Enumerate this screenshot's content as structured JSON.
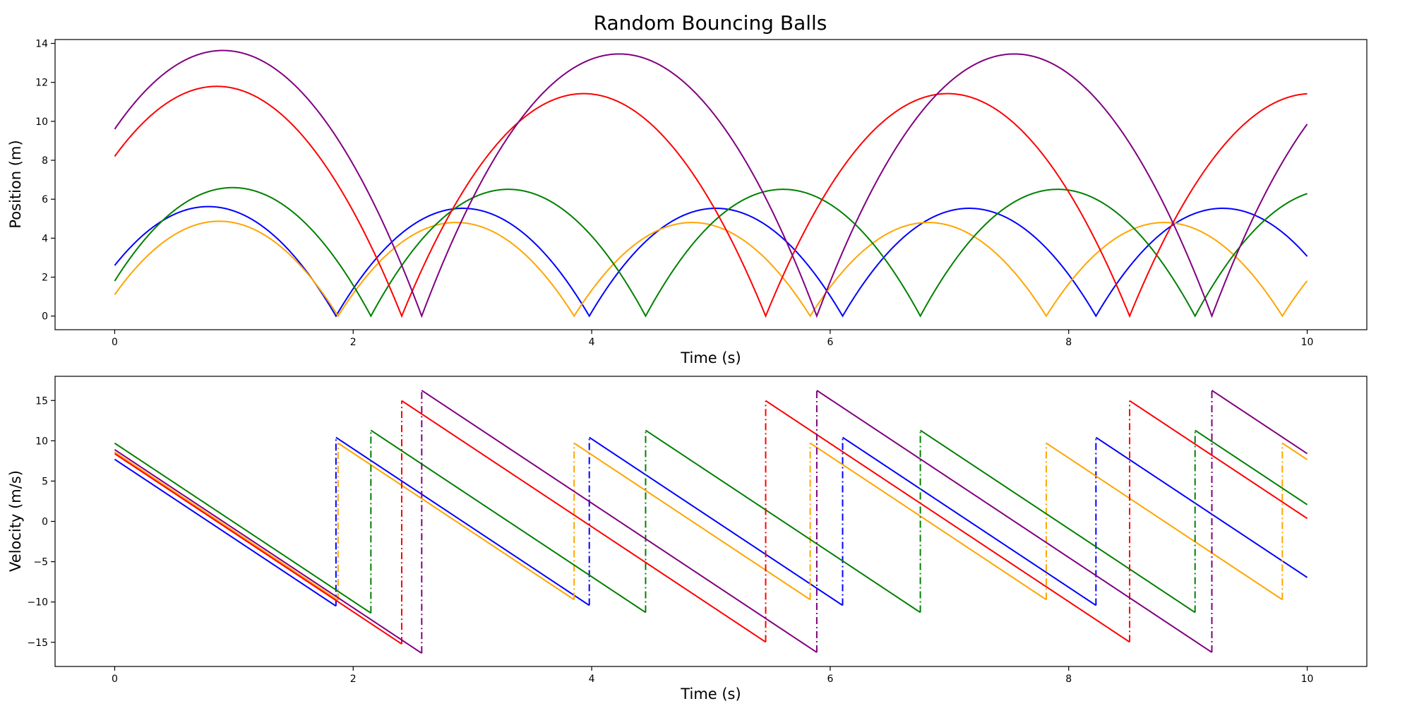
{
  "figure": {
    "title": "Random Bouncing Balls"
  },
  "chart_data": [
    {
      "type": "line",
      "xlabel": "Time (s)",
      "ylabel": "Position (m)",
      "xlim": [
        -0.5,
        10.5
      ],
      "ylim": [
        -0.7,
        14.2
      ],
      "xticks": [
        "0",
        "2",
        "4",
        "6",
        "8",
        "10"
      ],
      "yticks": [
        "0",
        "2",
        "4",
        "6",
        "8",
        "10",
        "12",
        "14"
      ],
      "grid": false,
      "legend": "none",
      "x_range": [
        0,
        10
      ],
      "series": [
        {
          "color": "#0000ff",
          "y0": 2.6,
          "v0": 7.7,
          "bounce_velocity": 10.42
        },
        {
          "color": "#ffa500",
          "y0": 1.1,
          "v0": 8.6,
          "bounce_velocity": 9.71
        },
        {
          "color": "#008000",
          "y0": 1.8,
          "v0": 9.7,
          "bounce_velocity": 11.3
        },
        {
          "color": "#ff0000",
          "y0": 8.2,
          "v0": 8.4,
          "bounce_velocity": 14.97
        },
        {
          "color": "#800080",
          "y0": 9.6,
          "v0": 8.9,
          "bounce_velocity": 16.25
        }
      ]
    },
    {
      "type": "line",
      "xlabel": "Time (s)",
      "ylabel": "Velocity (m/s)",
      "xlim": [
        -0.5,
        10.5
      ],
      "ylim": [
        -18,
        18
      ],
      "xticks": [
        "0",
        "2",
        "4",
        "6",
        "8",
        "10"
      ],
      "yticks": [
        "15",
        "10",
        "5",
        "0",
        "−5",
        "−10",
        "−15"
      ],
      "grid": false,
      "legend": "none",
      "note_linestyle": "solid segments with dash-dot jumps at bounces",
      "series_ref": "same five balls as position panel"
    }
  ]
}
